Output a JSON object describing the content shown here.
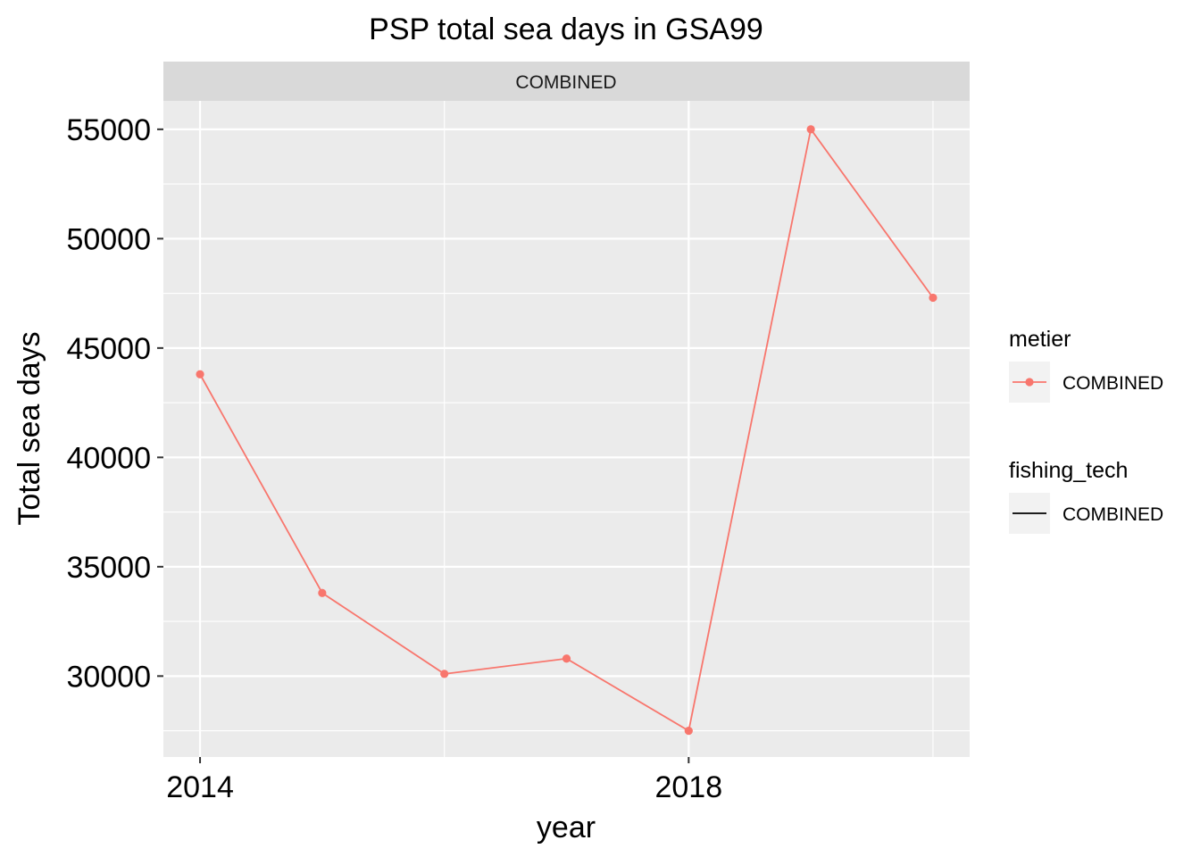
{
  "chart_data": {
    "type": "line",
    "title": "PSP total sea days in GSA99",
    "facet": "COMBINED",
    "xlabel": "year",
    "ylabel": "Total sea days",
    "x": [
      2014,
      2015,
      2016,
      2017,
      2018,
      2019,
      2020
    ],
    "x_ticks": [
      2014,
      2018
    ],
    "y_ticks": [
      30000,
      35000,
      40000,
      45000,
      50000,
      55000
    ],
    "xlim": [
      2013.7,
      2020.3
    ],
    "ylim": [
      26300,
      56300
    ],
    "grid": true,
    "series": [
      {
        "name": "COMBINED",
        "values": [
          43800,
          33800,
          30100,
          30800,
          27500,
          55000,
          47300
        ]
      }
    ],
    "legend": [
      {
        "title": "metier",
        "label": "COMBINED",
        "key": "point-line"
      },
      {
        "title": "fishing_tech",
        "label": "COMBINED",
        "key": "line"
      }
    ],
    "legend_position": "right",
    "colors": {
      "series": "#F8766D",
      "panel": "#EBEBEB",
      "strip": "#D9D9D9",
      "grid": "#FFFFFF",
      "legend_key": "#F2F2F2",
      "black_line": "#000000"
    }
  }
}
